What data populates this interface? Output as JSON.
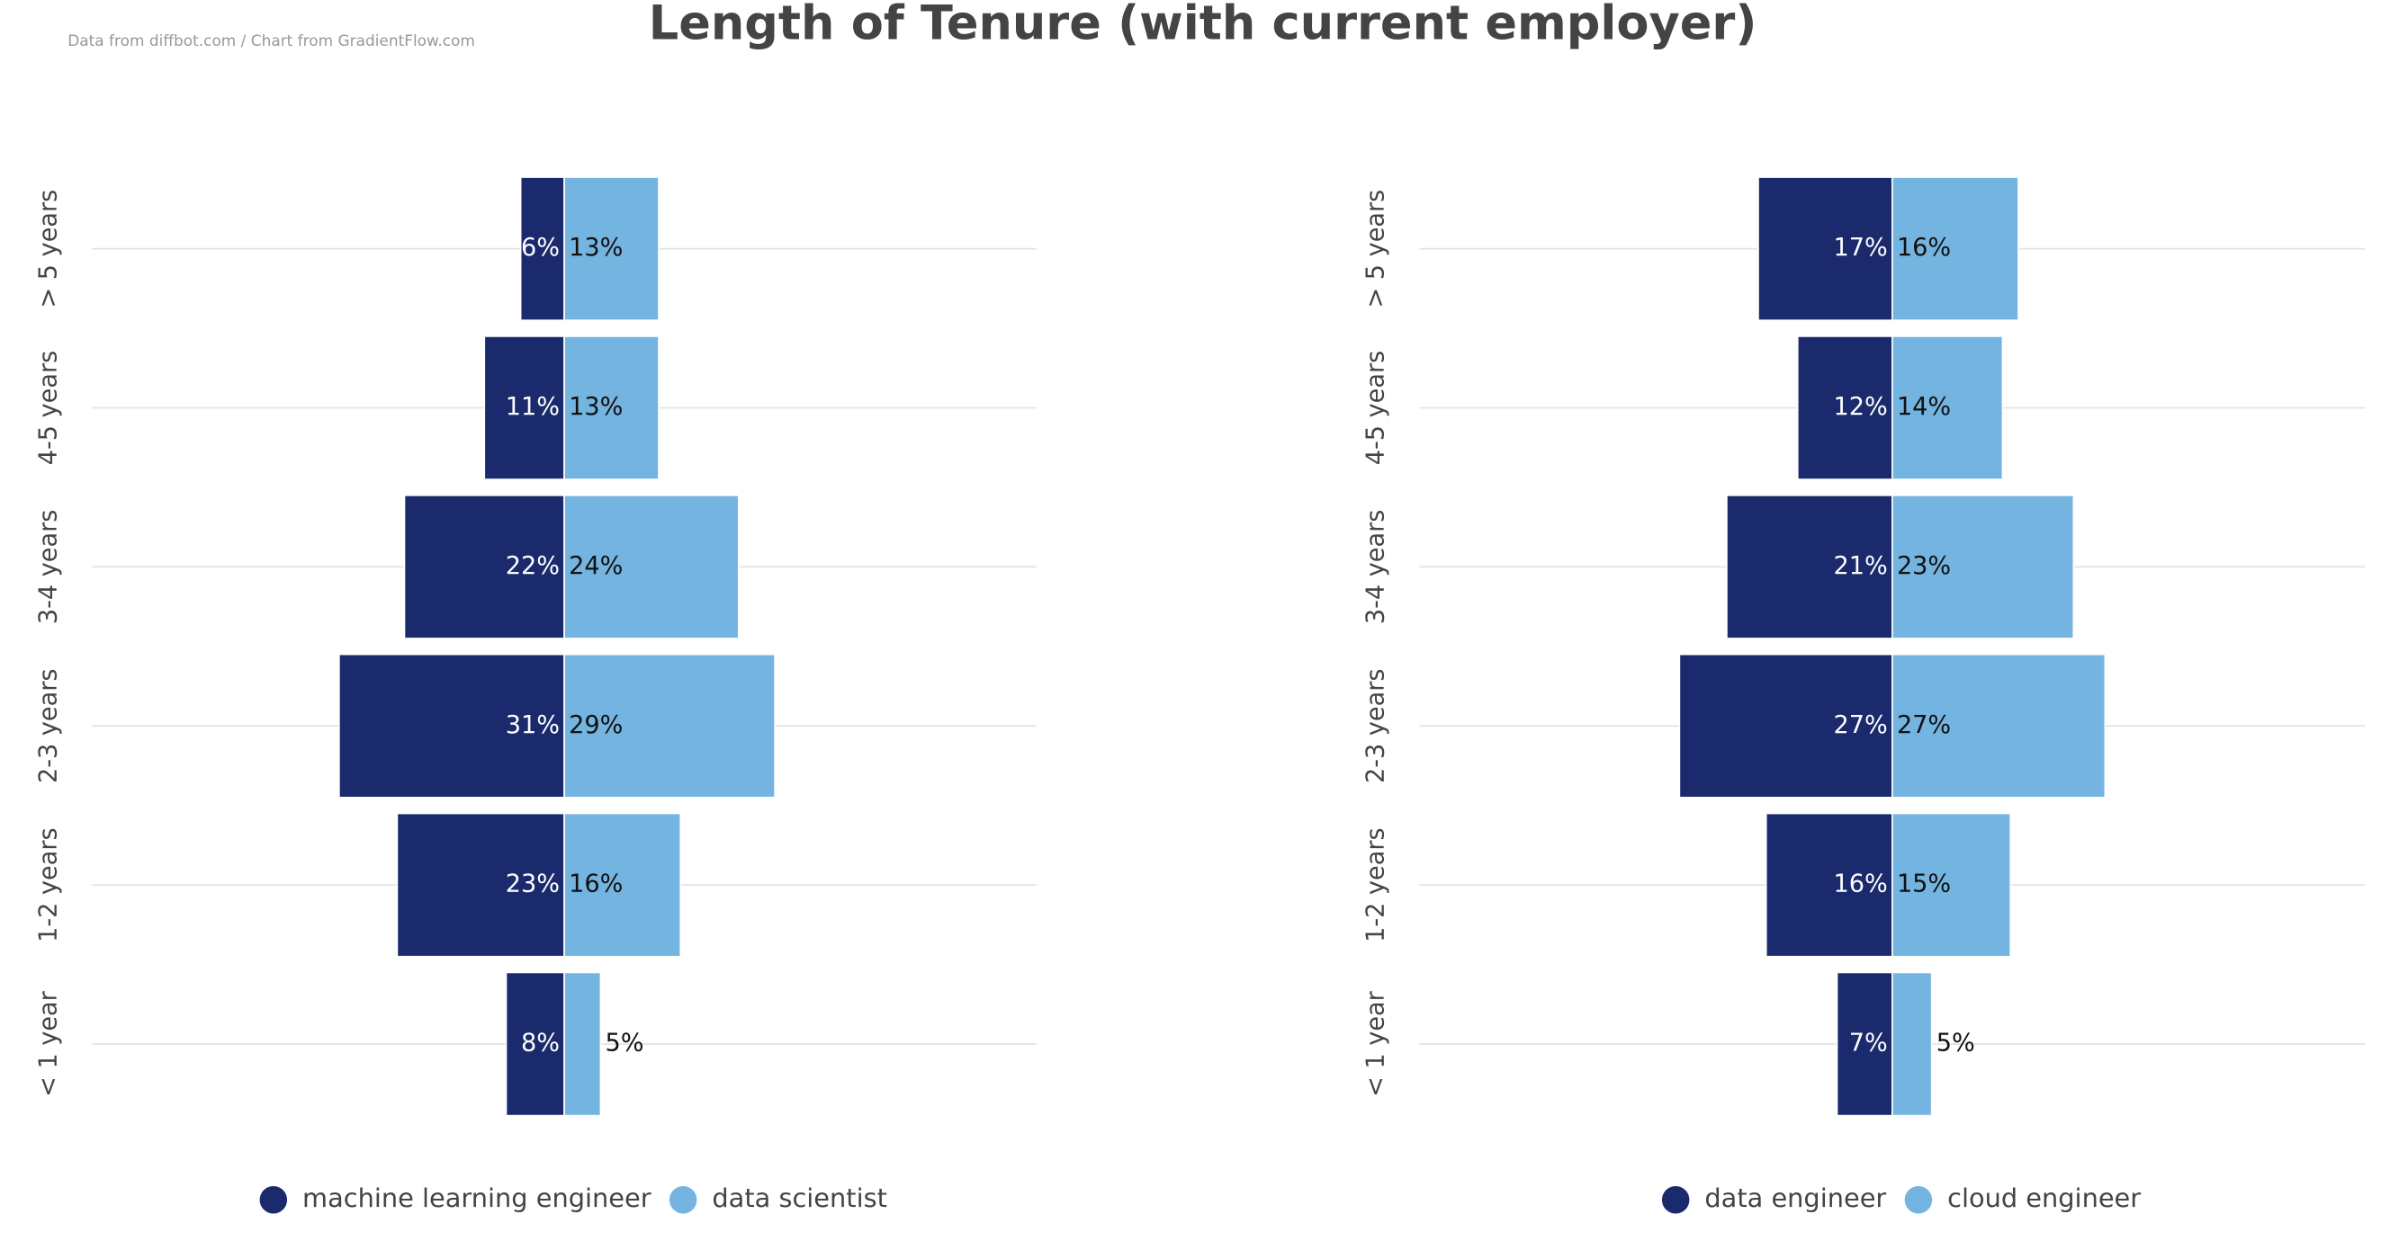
{
  "title": "Length of Tenure (with current employer)",
  "source": "Data from diffbot.com / Chart from GradientFlow.com",
  "chart_data": [
    {
      "type": "butterfly",
      "categories": [
        "> 5 years",
        "4-5 years",
        "3-4 years",
        "2-3 years",
        "1-2 years",
        "< 1 year"
      ],
      "series": [
        {
          "name": "machine learning engineer",
          "color": "#1a2a6c",
          "values": [
            6,
            11,
            22,
            31,
            23,
            8
          ],
          "value_labels": [
            "6%",
            "11%",
            "22%",
            "31%",
            "23%",
            "8%"
          ]
        },
        {
          "name": "data scientist",
          "color": "#74b4e0",
          "values": [
            13,
            13,
            24,
            29,
            16,
            5
          ],
          "value_labels": [
            "13%",
            "13%",
            "24%",
            "29%",
            "16%",
            "5%"
          ]
        }
      ],
      "xlim": [
        -65,
        65
      ],
      "grid": true
    },
    {
      "type": "butterfly",
      "categories": [
        "> 5 years",
        "4-5 years",
        "3-4 years",
        "2-3 years",
        "1-2 years",
        "< 1 year"
      ],
      "series": [
        {
          "name": "data engineer",
          "color": "#1a2a6c",
          "values": [
            17,
            12,
            21,
            27,
            16,
            7
          ],
          "value_labels": [
            "17%",
            "12%",
            "21%",
            "27%",
            "16%",
            "7%"
          ]
        },
        {
          "name": "cloud engineer",
          "color": "#74b4e0",
          "values": [
            16,
            14,
            23,
            27,
            15,
            5
          ],
          "value_labels": [
            "16%",
            "14%",
            "23%",
            "27%",
            "15%",
            "5%"
          ]
        }
      ],
      "xlim": [
        -60,
        60
      ],
      "grid": true
    }
  ]
}
